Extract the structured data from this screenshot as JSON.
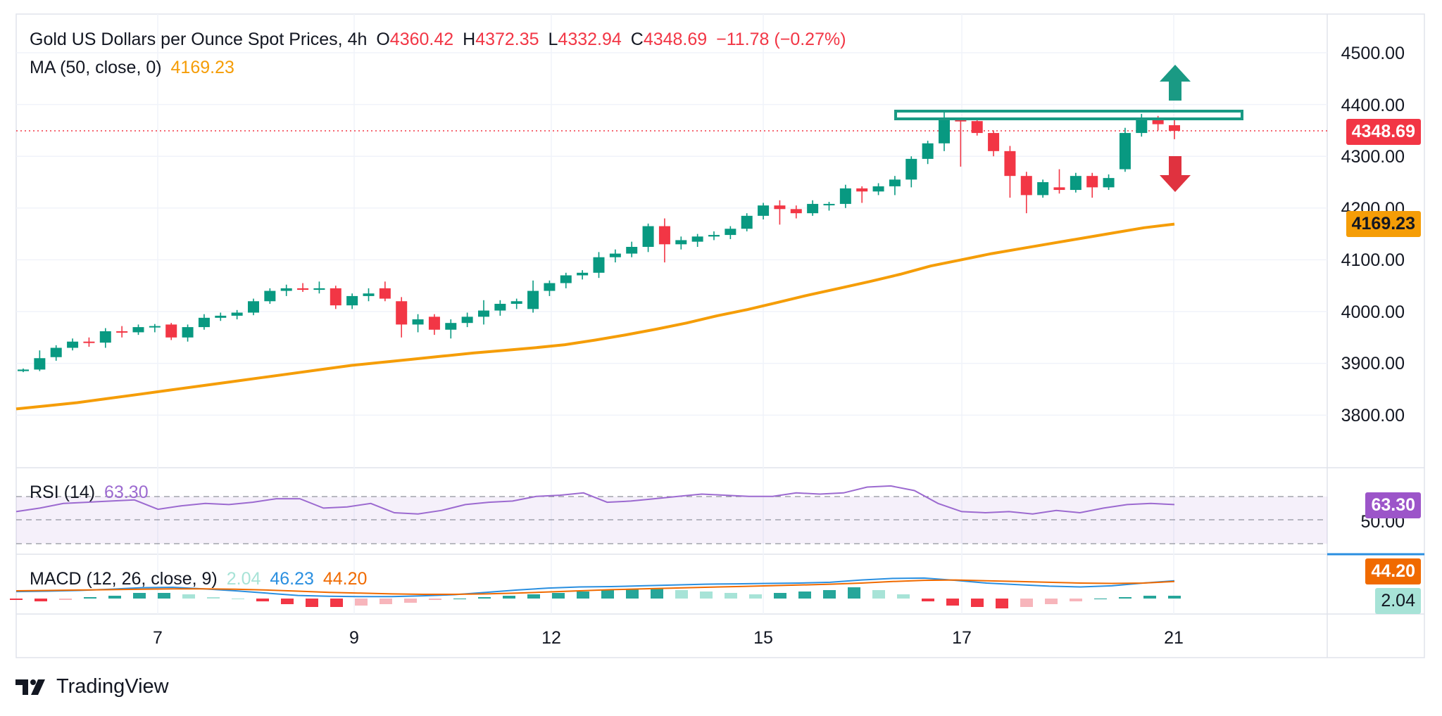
{
  "header": {
    "symbol": "Gold US Dollars per Ounce Spot Prices, 4h",
    "o_label": "O",
    "open": "4360.42",
    "h_label": "H",
    "high": "4372.35",
    "l_label": "L",
    "low": "4332.94",
    "c_label": "C",
    "close": "4348.69",
    "change": "−11.78 (−0.27%)",
    "ma_label": "MA (50, close, 0)",
    "ma_value": "4169.23"
  },
  "rsi": {
    "label": "RSI (14)",
    "value": "63.30",
    "tag": "63.30",
    "mid_label": "50.00"
  },
  "macd": {
    "label": "MACD (12, 26, close, 9)",
    "hist": "2.04",
    "macd": "46.23",
    "signal": "44.20",
    "tag_signal": "44.20",
    "tag_hist": "2.04"
  },
  "price_tags": {
    "last": "4348.69",
    "ma": "4169.23"
  },
  "brand": "TradingView",
  "colors": {
    "up": "#089981",
    "down": "#f23645",
    "ma": "#f59d07",
    "rsi": "#9c6ad0",
    "macd": "#2a8fe0",
    "signal": "#f06a00",
    "resistance": "#1a9a84"
  },
  "chart_data": {
    "type": "candlestick",
    "title": "Gold US Dollars per Ounce Spot Prices, 4h",
    "y_ticks": [
      "4500.00",
      "4400.00",
      "4300.00",
      "4200.00",
      "4100.00",
      "4000.00",
      "3900.00",
      "3800.00"
    ],
    "ylim": [
      3710,
      4520
    ],
    "x_ticks": [
      {
        "label": "7",
        "index": 6
      },
      {
        "label": "9",
        "index": 15
      },
      {
        "label": "12",
        "index": 24
      },
      {
        "label": "15",
        "index": 34
      },
      {
        "label": "17",
        "index": 43
      },
      {
        "label": "21",
        "index": 53
      }
    ],
    "resistance": 4375,
    "candles": [
      [
        3885,
        3890,
        3883,
        3888
      ],
      [
        3888,
        3925,
        3885,
        3910
      ],
      [
        3912,
        3935,
        3905,
        3930
      ],
      [
        3930,
        3948,
        3925,
        3942
      ],
      [
        3942,
        3950,
        3932,
        3940
      ],
      [
        3940,
        3968,
        3930,
        3962
      ],
      [
        3962,
        3972,
        3950,
        3960
      ],
      [
        3960,
        3975,
        3955,
        3970
      ],
      [
        3970,
        3976,
        3960,
        3972
      ],
      [
        3975,
        3978,
        3945,
        3950
      ],
      [
        3950,
        3975,
        3942,
        3970
      ],
      [
        3970,
        3995,
        3965,
        3988
      ],
      [
        3988,
        3998,
        3982,
        3992
      ],
      [
        3992,
        4003,
        3985,
        3998
      ],
      [
        3998,
        4025,
        3993,
        4020
      ],
      [
        4020,
        4045,
        4015,
        4040
      ],
      [
        4040,
        4052,
        4030,
        4045
      ],
      [
        4045,
        4055,
        4038,
        4042
      ],
      [
        4042,
        4058,
        4035,
        4045
      ],
      [
        4045,
        4050,
        4005,
        4012
      ],
      [
        4012,
        4035,
        4005,
        4030
      ],
      [
        4030,
        4045,
        4020,
        4035
      ],
      [
        4045,
        4058,
        4020,
        4025
      ],
      [
        4020,
        4028,
        3950,
        3975
      ],
      [
        3975,
        3995,
        3960,
        3985
      ],
      [
        3990,
        3995,
        3955,
        3965
      ],
      [
        3965,
        3985,
        3948,
        3978
      ],
      [
        3978,
        3998,
        3970,
        3990
      ],
      [
        3990,
        4022,
        3975,
        4002
      ],
      [
        4002,
        4022,
        3992,
        4015
      ],
      [
        4015,
        4025,
        4005,
        4020
      ],
      [
        4005,
        4060,
        3998,
        4040
      ],
      [
        4040,
        4060,
        4030,
        4055
      ],
      [
        4055,
        4075,
        4045,
        4070
      ],
      [
        4070,
        4080,
        4062,
        4075
      ],
      [
        4075,
        4115,
        4065,
        4105
      ],
      [
        4105,
        4120,
        4095,
        4112
      ],
      [
        4112,
        4135,
        4105,
        4125
      ],
      [
        4125,
        4170,
        4115,
        4165
      ],
      [
        4165,
        4180,
        4095,
        4130
      ],
      [
        4130,
        4145,
        4120,
        4138
      ],
      [
        4135,
        4150,
        4125,
        4145
      ],
      [
        4145,
        4155,
        4138,
        4148
      ],
      [
        4148,
        4165,
        4140,
        4160
      ],
      [
        4160,
        4190,
        4155,
        4185
      ],
      [
        4185,
        4210,
        4178,
        4205
      ],
      [
        4205,
        4215,
        4168,
        4198
      ],
      [
        4198,
        4205,
        4180,
        4190
      ],
      [
        4190,
        4215,
        4185,
        4208
      ],
      [
        4208,
        4212,
        4195,
        4208
      ],
      [
        4208,
        4245,
        4200,
        4238
      ],
      [
        4238,
        4242,
        4210,
        4232
      ],
      [
        4232,
        4248,
        4225,
        4242
      ],
      [
        4242,
        4262,
        4225,
        4255
      ],
      [
        4255,
        4300,
        4240,
        4295
      ],
      [
        4295,
        4330,
        4285,
        4325
      ],
      [
        4325,
        4385,
        4310,
        4370
      ],
      [
        4370,
        4375,
        4280,
        4368
      ],
      [
        4368,
        4375,
        4340,
        4345
      ],
      [
        4345,
        4350,
        4300,
        4310
      ],
      [
        4310,
        4320,
        4220,
        4262
      ],
      [
        4262,
        4270,
        4190,
        4225
      ],
      [
        4225,
        4255,
        4220,
        4250
      ],
      [
        4240,
        4275,
        4228,
        4235
      ],
      [
        4235,
        4268,
        4230,
        4262
      ],
      [
        4262,
        4268,
        4220,
        4240
      ],
      [
        4240,
        4265,
        4235,
        4258
      ],
      [
        4275,
        4355,
        4270,
        4345
      ],
      [
        4345,
        4382,
        4338,
        4375
      ],
      [
        4375,
        4378,
        4350,
        4362
      ],
      [
        4360,
        4372,
        4333,
        4349
      ]
    ],
    "ma50": [
      3812,
      3818,
      3824,
      3832,
      3840,
      3848,
      3856,
      3864,
      3872,
      3880,
      3888,
      3896,
      3902,
      3908,
      3914,
      3920,
      3925,
      3930,
      3936,
      3945,
      3955,
      3966,
      3978,
      3992,
      4004,
      4018,
      4032,
      4045,
      4058,
      4072,
      4088,
      4100,
      4112,
      4122,
      4132,
      4142,
      4152,
      4162,
      4169
    ],
    "rsi": [
      57,
      60,
      64,
      65,
      66,
      67,
      59,
      62,
      64,
      63,
      65,
      68,
      68,
      60,
      61,
      64,
      56,
      55,
      58,
      63,
      65,
      66,
      70,
      71,
      73,
      65,
      66,
      68,
      70,
      72,
      71,
      70,
      70,
      73,
      72,
      73,
      78,
      79,
      75,
      64,
      57,
      56,
      57,
      55,
      58,
      56,
      60,
      63,
      64,
      63
    ],
    "macd_line": [
      18,
      19,
      21,
      24,
      28,
      29,
      25,
      20,
      14,
      8,
      6,
      5,
      5,
      7,
      10,
      16,
      22,
      27,
      30,
      31,
      33,
      35,
      37,
      38,
      39,
      40,
      42,
      48,
      52,
      53,
      47,
      40,
      36,
      32,
      30,
      33,
      40,
      46
    ],
    "signal_line": [
      20,
      21,
      22,
      23,
      24,
      25,
      25,
      24,
      22,
      19,
      16,
      14,
      12,
      11,
      11,
      12,
      14,
      17,
      20,
      23,
      25,
      27,
      29,
      31,
      33,
      35,
      37,
      40,
      44,
      47,
      48,
      46,
      44,
      42,
      40,
      39,
      40,
      44
    ],
    "macd_hist": [
      -1,
      -2,
      -1,
      1,
      2,
      4,
      4,
      3,
      1,
      0,
      -2,
      -4,
      -6,
      -6,
      -5,
      -4,
      -3,
      -1,
      0,
      1,
      2,
      3,
      4,
      5,
      6,
      7,
      7,
      6,
      5,
      4,
      3,
      4,
      5,
      6,
      8,
      6,
      3,
      -2,
      -5,
      -6,
      -7,
      -6,
      -4,
      -2,
      0,
      1,
      2,
      2
    ]
  }
}
